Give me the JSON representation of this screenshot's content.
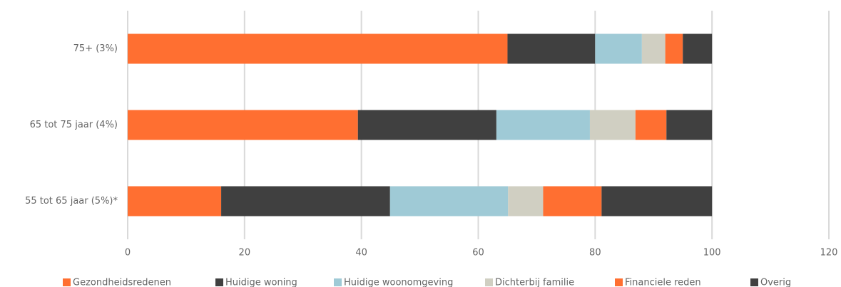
{
  "chart_data": {
    "type": "stacked-bar-horizontal",
    "categories": [
      "75+ (3%)",
      "65 tot 75 jaar (4%)",
      "55 tot 65 jaar (5%)*"
    ],
    "series": [
      {
        "name": "Gezondheidsredenen",
        "color": "#ff6f31",
        "values": [
          65,
          39.4,
          16
        ]
      },
      {
        "name": "Huidige woning",
        "color": "#404040",
        "values": [
          15,
          23.7,
          28.9
        ]
      },
      {
        "name": "Huidige woonomgeving",
        "color": "#9fcad6",
        "values": [
          8,
          16,
          20.2
        ]
      },
      {
        "name": "Dichterbij familie",
        "color": "#d0cfc2",
        "values": [
          4,
          7.8,
          6
        ]
      },
      {
        "name": "Financiele reden",
        "color": "#ff6f31",
        "values": [
          3,
          5.3,
          10
        ]
      },
      {
        "name": "Overig",
        "color": "#404040",
        "values": [
          5,
          7.8,
          18.9
        ]
      }
    ],
    "xlim": [
      0,
      120
    ],
    "xticks": [
      0,
      20,
      40,
      60,
      80,
      100,
      120
    ],
    "grid": true,
    "legend": "bottom"
  }
}
